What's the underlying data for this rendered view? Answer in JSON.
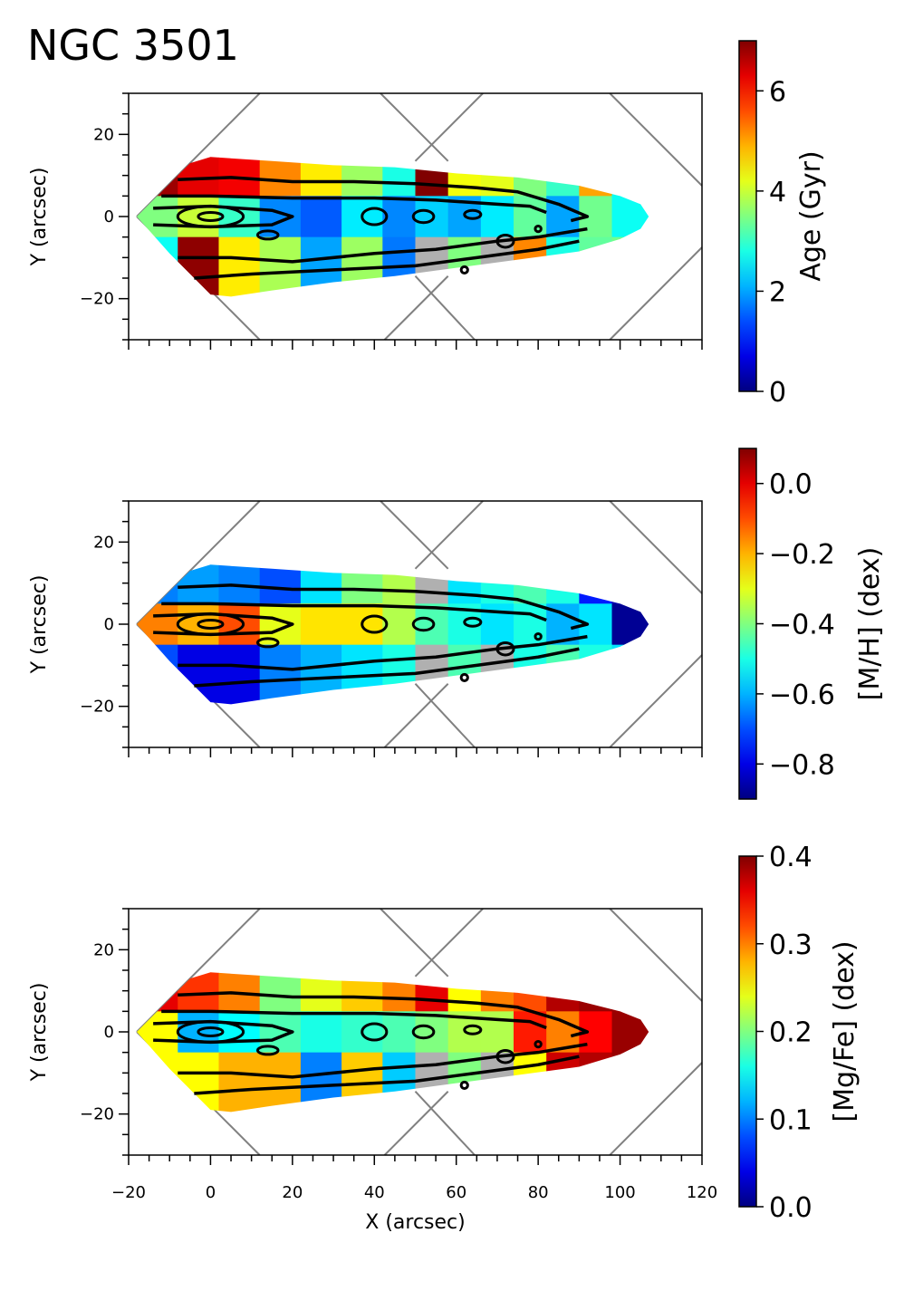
{
  "title": "NGC 3501",
  "chart_data": [
    {
      "type": "heatmap",
      "title": "NGC 3501",
      "xlabel": "",
      "ylabel": "Y (arcsec)",
      "xlim": [
        -20,
        120
      ],
      "ylim": [
        -30,
        30
      ],
      "x_ticks": [],
      "y_ticks": [
        "20",
        "0",
        "−20"
      ],
      "colormap": "jet",
      "colorbar": {
        "label": "Age (Gyr)",
        "range": [
          0,
          7
        ],
        "ticks": [
          0,
          2,
          4,
          6
        ],
        "tick_labels": [
          "0",
          "2",
          "4",
          "6"
        ]
      },
      "bins": {
        "x_edges": [
          -18,
          -8,
          2,
          12,
          22,
          32,
          42,
          50,
          58,
          66,
          74,
          82,
          90,
          98,
          108
        ],
        "y_bands": [
          "y > 5",
          "-5 < y < 5",
          "y < -5"
        ],
        "values": [
          [
            6.8,
            6.3,
            6.2,
            5.2,
            4.5,
            3.7,
            2.8,
            7.0,
            4.3,
            4.2,
            3.5,
            3.0,
            5.0,
            2.7
          ],
          [
            3.5,
            4.0,
            3.0,
            1.8,
            1.5,
            2.5,
            1.8,
            2.3,
            2.0,
            2.5,
            3.3,
            2.0,
            3.4,
            2.7
          ],
          [
            2.7,
            6.9,
            4.5,
            3.8,
            2.0,
            3.7,
            1.7,
            null,
            3.5,
            null,
            5.2,
            2.8,
            3.3,
            3.4
          ]
        ]
      }
    },
    {
      "type": "heatmap",
      "xlabel": "",
      "ylabel": "Y (arcsec)",
      "xlim": [
        -20,
        120
      ],
      "ylim": [
        -30,
        30
      ],
      "x_ticks": [],
      "y_ticks": [
        "20",
        "0",
        "−20"
      ],
      "colormap": "jet",
      "colorbar": {
        "label": "[M/H] (dex)",
        "range": [
          -0.9,
          0.1
        ],
        "ticks": [
          -0.8,
          -0.6,
          -0.4,
          -0.2,
          0.0
        ],
        "tick_labels": [
          "−0.8",
          "−0.6",
          "−0.4",
          "−0.2",
          "0.0"
        ]
      },
      "bins": {
        "x_edges": [
          -18,
          -8,
          2,
          12,
          22,
          32,
          42,
          50,
          58,
          66,
          74,
          82,
          90,
          98,
          108
        ],
        "y_bands": [
          "y > 5",
          "-5 < y < 5",
          "y < -5"
        ],
        "values": [
          [
            -0.65,
            -0.62,
            -0.65,
            -0.7,
            -0.55,
            -0.4,
            -0.35,
            null,
            -0.55,
            -0.5,
            -0.45,
            -0.5,
            -0.75,
            -0.85
          ],
          [
            -0.15,
            -0.2,
            -0.1,
            -0.3,
            -0.25,
            -0.25,
            -0.35,
            -0.45,
            -0.5,
            -0.55,
            -0.5,
            -0.6,
            -0.55,
            -0.88
          ],
          [
            -0.7,
            -0.8,
            -0.8,
            -0.65,
            -0.6,
            -0.55,
            -0.5,
            null,
            -0.45,
            null,
            -0.5,
            -0.45,
            -0.5,
            -0.55
          ]
        ]
      }
    },
    {
      "type": "heatmap",
      "xlabel": "X (arcsec)",
      "ylabel": "Y (arcsec)",
      "xlim": [
        -20,
        120
      ],
      "ylim": [
        -30,
        30
      ],
      "x_ticks": [
        "−20",
        "0",
        "20",
        "40",
        "60",
        "80",
        "100",
        "120"
      ],
      "y_ticks": [
        "20",
        "0",
        "−20"
      ],
      "colormap": "jet",
      "colorbar": {
        "label": "[Mg/Fe] (dex)",
        "range": [
          0.0,
          0.4
        ],
        "ticks": [
          0.0,
          0.1,
          0.2,
          0.3,
          0.4
        ],
        "tick_labels": [
          "0.0",
          "0.1",
          "0.2",
          "0.3",
          "0.4"
        ]
      },
      "bins": {
        "x_edges": [
          -18,
          -8,
          2,
          12,
          22,
          32,
          42,
          50,
          58,
          66,
          74,
          82,
          90,
          98,
          108
        ],
        "y_bands": [
          "y > 5",
          "-5 < y < 5",
          "y < -5"
        ],
        "values": [
          [
            0.36,
            0.33,
            0.3,
            0.2,
            0.24,
            0.27,
            0.3,
            0.36,
            0.25,
            0.3,
            0.32,
            0.38,
            0.39,
            0.39
          ],
          [
            0.25,
            0.12,
            0.15,
            0.18,
            0.16,
            0.17,
            0.18,
            0.2,
            0.22,
            0.22,
            0.34,
            0.3,
            0.35,
            0.39
          ],
          [
            0.25,
            0.25,
            0.28,
            0.28,
            0.1,
            0.27,
            0.13,
            null,
            0.2,
            null,
            0.25,
            0.37,
            0.38,
            0.39
          ]
        ]
      }
    }
  ],
  "colors": {
    "masked_bin": "#b0b0b0",
    "contour": "#000000",
    "field_outline": "#808080"
  }
}
